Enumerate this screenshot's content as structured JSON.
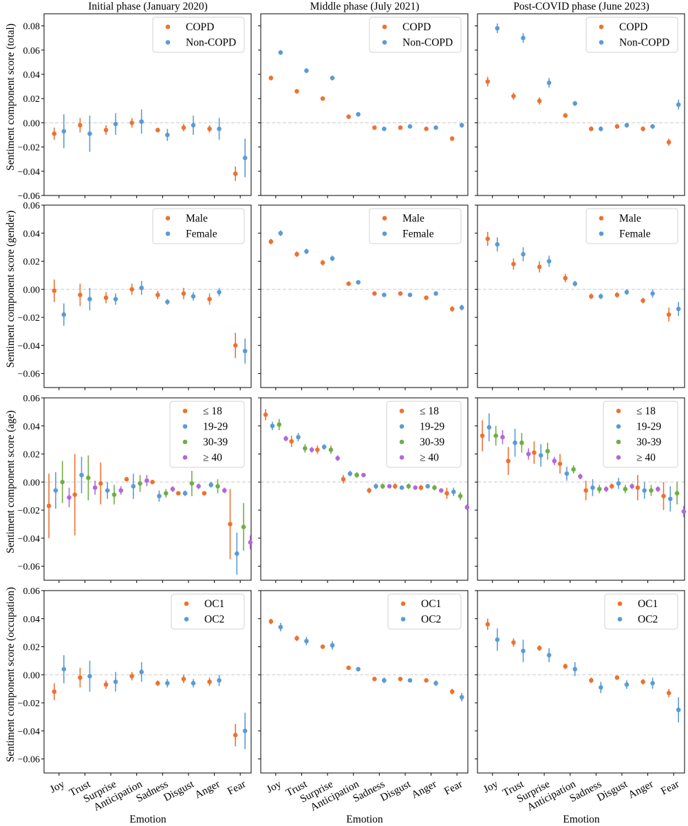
{
  "colors": {
    "orange": "#ED7231",
    "blue": "#5B9BD5",
    "green": "#70AD47",
    "purple": "#B268D8"
  },
  "columns": [
    "Initial phase (January 2020)",
    "Middle phase (July 2021)",
    "Post-COVID phase (June 2023)"
  ],
  "xlabel": "Emotion",
  "emotions": [
    "Joy",
    "Trust",
    "Surprise",
    "Anticipation",
    "Sadness",
    "Disgust",
    "Anger",
    "Fear"
  ],
  "chart_data": [
    {
      "type": "scatter",
      "grid": false,
      "row": "total",
      "ylabel": "Sentiment component score (total)",
      "ylim": [
        -0.06,
        0.09
      ],
      "yticks": [
        "−0.06",
        "−0.04",
        "−0.02",
        "0.00",
        "0.02",
        "0.04",
        "0.06",
        "0.08"
      ],
      "legend_position": "top-right",
      "series_names": [
        "COPD",
        "Non-COPD"
      ],
      "series_colors": [
        "orange",
        "blue"
      ],
      "panels": [
        {
          "title": "Initial phase (January 2020)",
          "series": [
            {
              "name": "COPD",
              "values": [
                -0.009,
                -0.002,
                -0.006,
                0.0,
                -0.006,
                -0.004,
                -0.005,
                -0.042
              ],
              "errors": [
                0.005,
                0.006,
                0.004,
                0.004,
                0.002,
                0.003,
                0.003,
                0.006
              ]
            },
            {
              "name": "Non-COPD",
              "values": [
                -0.007,
                -0.009,
                -0.001,
                0.001,
                -0.01,
                -0.002,
                -0.005,
                -0.029
              ],
              "errors": [
                0.014,
                0.015,
                0.009,
                0.01,
                0.005,
                0.008,
                0.009,
                0.016
              ]
            }
          ]
        },
        {
          "title": "Middle phase (July 2021)",
          "series": [
            {
              "name": "COPD",
              "values": [
                0.037,
                0.026,
                0.02,
                0.005,
                -0.004,
                -0.004,
                -0.005,
                -0.013
              ],
              "errors": [
                0.002,
                0.001,
                0.001,
                0.001,
                0.001,
                0.001,
                0.001,
                0.002
              ]
            },
            {
              "name": "Non-COPD",
              "values": [
                0.058,
                0.043,
                0.037,
                0.007,
                -0.005,
                -0.003,
                -0.004,
                -0.002
              ],
              "errors": [
                0.002,
                0.002,
                0.002,
                0.001,
                0.001,
                0.001,
                0.001,
                0.002
              ]
            }
          ]
        },
        {
          "title": "Post-COVID phase (June 2023)",
          "series": [
            {
              "name": "COPD",
              "values": [
                0.034,
                0.022,
                0.018,
                0.006,
                -0.005,
                -0.003,
                -0.005,
                -0.016
              ],
              "errors": [
                0.004,
                0.003,
                0.003,
                0.002,
                0.002,
                0.002,
                0.002,
                0.003
              ]
            },
            {
              "name": "Non-COPD",
              "values": [
                0.078,
                0.07,
                0.033,
                0.016,
                -0.005,
                -0.002,
                -0.003,
                0.015
              ],
              "errors": [
                0.004,
                0.004,
                0.004,
                0.002,
                0.002,
                0.002,
                0.002,
                0.004
              ]
            }
          ]
        }
      ]
    },
    {
      "type": "scatter",
      "grid": false,
      "row": "gender",
      "ylabel": "Sentiment component score (gender)",
      "ylim": [
        -0.07,
        0.06
      ],
      "yticks": [
        "−0.06",
        "−0.04",
        "−0.02",
        "0.00",
        "0.02",
        "0.04",
        "0.06"
      ],
      "legend_position": "top-right",
      "series_names": [
        "Male",
        "Female"
      ],
      "series_colors": [
        "orange",
        "blue"
      ],
      "panels": [
        {
          "title": "Initial phase (January 2020)",
          "series": [
            {
              "name": "Male",
              "values": [
                -0.001,
                -0.004,
                -0.006,
                -0.0,
                -0.004,
                -0.003,
                -0.007,
                -0.04
              ],
              "errors": [
                0.008,
                0.008,
                0.004,
                0.004,
                0.003,
                0.004,
                0.004,
                0.009
              ]
            },
            {
              "name": "Female",
              "values": [
                -0.018,
                -0.007,
                -0.007,
                0.001,
                -0.009,
                -0.005,
                -0.002,
                -0.044
              ],
              "errors": [
                0.008,
                0.008,
                0.004,
                0.005,
                0.002,
                0.003,
                0.003,
                0.009
              ]
            }
          ]
        },
        {
          "title": "Middle phase (July 2021)",
          "series": [
            {
              "name": "Male",
              "values": [
                0.034,
                0.025,
                0.019,
                0.004,
                -0.003,
                -0.003,
                -0.006,
                -0.014
              ],
              "errors": [
                0.002,
                0.002,
                0.002,
                0.001,
                0.001,
                0.001,
                0.001,
                0.002
              ]
            },
            {
              "name": "Female",
              "values": [
                0.04,
                0.027,
                0.022,
                0.005,
                -0.004,
                -0.004,
                -0.003,
                -0.013
              ],
              "errors": [
                0.002,
                0.002,
                0.002,
                0.001,
                0.001,
                0.001,
                0.001,
                0.002
              ]
            }
          ]
        },
        {
          "title": "Post-COVID phase (June 2023)",
          "series": [
            {
              "name": "Male",
              "values": [
                0.036,
                0.018,
                0.016,
                0.008,
                -0.005,
                -0.004,
                -0.008,
                -0.018
              ],
              "errors": [
                0.005,
                0.004,
                0.004,
                0.003,
                0.002,
                0.002,
                0.002,
                0.005
              ]
            },
            {
              "name": "Female",
              "values": [
                0.032,
                0.025,
                0.02,
                0.004,
                -0.005,
                -0.002,
                -0.003,
                -0.014
              ],
              "errors": [
                0.005,
                0.005,
                0.004,
                0.002,
                0.002,
                0.002,
                0.003,
                0.005
              ]
            }
          ]
        }
      ]
    },
    {
      "type": "scatter",
      "grid": false,
      "row": "age",
      "ylabel": "Sentiment component score (age)",
      "ylim": [
        -0.07,
        0.06
      ],
      "yticks": [
        "−0.06",
        "−0.04",
        "−0.02",
        "0.00",
        "0.02",
        "0.04",
        "0.06"
      ],
      "legend_position": "top-right",
      "series_names": [
        "≤ 18",
        "19-29",
        "30-39",
        "≥ 40"
      ],
      "series_colors": [
        "orange",
        "blue",
        "green",
        "purple"
      ],
      "panels": [
        {
          "title": "Initial phase (January 2020)",
          "series": [
            {
              "name": "≤ 18",
              "values": [
                -0.017,
                -0.009,
                -0.001,
                0.002,
                0.0,
                -0.008,
                -0.008,
                -0.03
              ],
              "errors": [
                0.023,
                0.029,
                0.015,
                0.001,
                0.001,
                0.001,
                0.001,
                0.025
              ]
            },
            {
              "name": "19-29",
              "values": [
                -0.006,
                0.005,
                -0.006,
                -0.003,
                -0.01,
                -0.008,
                -0.002,
                -0.051
              ],
              "errors": [
                0.013,
                0.013,
                0.006,
                0.009,
                0.004,
                0.002,
                0.002,
                0.015
              ]
            },
            {
              "name": "30-39",
              "values": [
                0.0,
                0.003,
                -0.009,
                -0.001,
                -0.008,
                -0.001,
                -0.003,
                -0.032
              ],
              "errors": [
                0.015,
                0.016,
                0.007,
                0.006,
                0.003,
                0.009,
                0.005,
                0.017
              ]
            },
            {
              "name": "≥ 40",
              "values": [
                -0.011,
                -0.004,
                -0.006,
                0.001,
                -0.005,
                -0.003,
                -0.006,
                -0.043
              ],
              "errors": [
                0.007,
                0.005,
                0.003,
                0.004,
                0.002,
                0.002,
                0.002,
                0.005
              ]
            }
          ]
        },
        {
          "title": "Middle phase (July 2021)",
          "series": [
            {
              "name": "≤ 18",
              "values": [
                0.048,
                0.029,
                0.023,
                0.002,
                -0.006,
                -0.003,
                -0.004,
                -0.008
              ],
              "errors": [
                0.004,
                0.004,
                0.003,
                0.003,
                0.002,
                0.002,
                0.002,
                0.004
              ]
            },
            {
              "name": "19-29",
              "values": [
                0.04,
                0.032,
                0.025,
                0.006,
                -0.003,
                -0.004,
                -0.003,
                -0.007
              ],
              "errors": [
                0.003,
                0.003,
                0.002,
                0.002,
                0.002,
                0.001,
                0.001,
                0.003
              ]
            },
            {
              "name": "30-39",
              "values": [
                0.041,
                0.024,
                0.023,
                0.005,
                -0.003,
                -0.003,
                -0.004,
                -0.01
              ],
              "errors": [
                0.004,
                0.003,
                0.003,
                0.002,
                0.002,
                0.002,
                0.002,
                0.003
              ]
            },
            {
              "name": "≥ 40",
              "values": [
                0.031,
                0.023,
                0.017,
                0.005,
                -0.003,
                -0.004,
                -0.006,
                -0.018
              ],
              "errors": [
                0.002,
                0.002,
                0.002,
                0.001,
                0.001,
                0.001,
                0.001,
                0.002
              ]
            }
          ]
        },
        {
          "title": "Post-COVID phase (June 2023)",
          "series": [
            {
              "name": "≤ 18",
              "values": [
                0.033,
                0.015,
                0.021,
                0.013,
                -0.006,
                -0.003,
                -0.004,
                -0.01
              ],
              "errors": [
                0.011,
                0.01,
                0.008,
                0.007,
                0.007,
                0.002,
                0.009,
                0.01
              ]
            },
            {
              "name": "19-29",
              "values": [
                0.039,
                0.028,
                0.019,
                0.006,
                -0.004,
                -0.001,
                -0.006,
                -0.012
              ],
              "errors": [
                0.01,
                0.01,
                0.008,
                0.005,
                0.006,
                0.004,
                0.006,
                0.009
              ]
            },
            {
              "name": "30-39",
              "values": [
                0.033,
                0.028,
                0.022,
                0.009,
                -0.005,
                -0.005,
                -0.006,
                -0.008
              ],
              "errors": [
                0.007,
                0.007,
                0.006,
                0.003,
                0.003,
                0.003,
                0.004,
                0.008
              ]
            },
            {
              "name": "≥ 40",
              "values": [
                0.032,
                0.02,
                0.015,
                0.004,
                -0.005,
                -0.003,
                -0.005,
                -0.021
              ],
              "errors": [
                0.005,
                0.004,
                0.003,
                0.002,
                0.002,
                0.002,
                0.002,
                0.004
              ]
            }
          ]
        }
      ]
    },
    {
      "type": "scatter",
      "grid": false,
      "row": "occupation",
      "ylabel": "Sentiment component score (occupation)",
      "ylim": [
        -0.07,
        0.06
      ],
      "yticks": [
        "−0.06",
        "−0.04",
        "−0.02",
        "0.00",
        "0.02",
        "0.04",
        "0.06"
      ],
      "legend_position": "top-right",
      "series_names": [
        "OC1",
        "OC2"
      ],
      "series_colors": [
        "orange",
        "blue"
      ],
      "panels": [
        {
          "title": "Initial phase (January 2020)",
          "series": [
            {
              "name": "OC1",
              "values": [
                -0.012,
                -0.002,
                -0.007,
                -0.001,
                -0.006,
                -0.003,
                -0.005,
                -0.043
              ],
              "errors": [
                0.006,
                0.007,
                0.003,
                0.003,
                0.002,
                0.003,
                0.003,
                0.008
              ]
            },
            {
              "name": "OC2",
              "values": [
                0.004,
                -0.001,
                -0.005,
                0.002,
                -0.006,
                -0.006,
                -0.004,
                -0.04
              ],
              "errors": [
                0.01,
                0.011,
                0.007,
                0.007,
                0.003,
                0.003,
                0.004,
                0.013
              ]
            }
          ]
        },
        {
          "title": "Middle phase (July 2021)",
          "series": [
            {
              "name": "OC1",
              "values": [
                0.038,
                0.026,
                0.02,
                0.005,
                -0.003,
                -0.003,
                -0.004,
                -0.012
              ],
              "errors": [
                0.002,
                0.002,
                0.001,
                0.001,
                0.001,
                0.001,
                0.001,
                0.002
              ]
            },
            {
              "name": "OC2",
              "values": [
                0.034,
                0.024,
                0.021,
                0.004,
                -0.004,
                -0.004,
                -0.006,
                -0.016
              ],
              "errors": [
                0.003,
                0.003,
                0.003,
                0.001,
                0.002,
                0.001,
                0.002,
                0.003
              ]
            }
          ]
        },
        {
          "title": "Post-COVID phase (June 2023)",
          "series": [
            {
              "name": "OC1",
              "values": [
                0.036,
                0.023,
                0.019,
                0.006,
                -0.004,
                -0.002,
                -0.005,
                -0.013
              ],
              "errors": [
                0.004,
                0.003,
                0.002,
                0.002,
                0.002,
                0.001,
                0.002,
                0.003
              ]
            },
            {
              "name": "OC2",
              "values": [
                0.025,
                0.017,
                0.014,
                0.004,
                -0.009,
                -0.007,
                -0.006,
                -0.025
              ],
              "errors": [
                0.008,
                0.008,
                0.005,
                0.005,
                0.004,
                0.003,
                0.004,
                0.009
              ]
            }
          ]
        }
      ]
    }
  ]
}
